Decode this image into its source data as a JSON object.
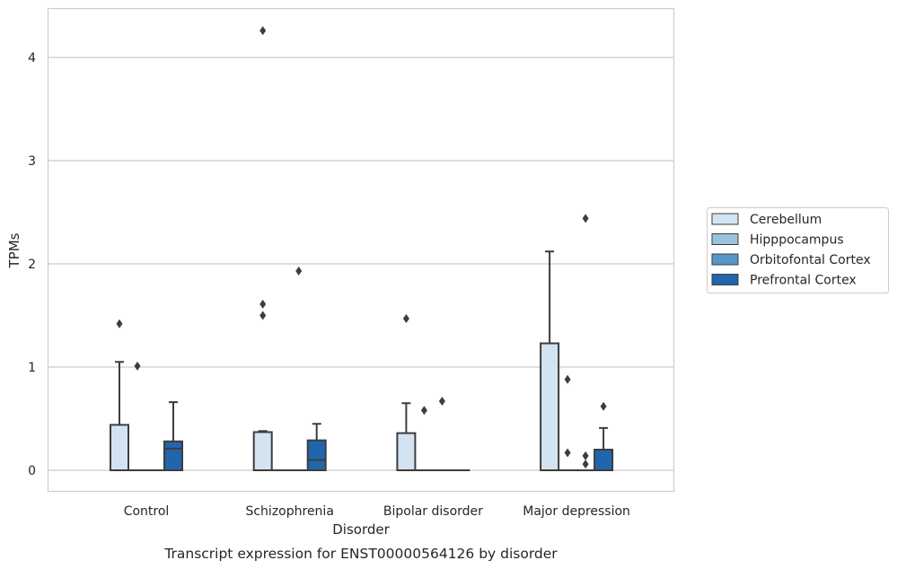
{
  "chart_data": {
    "type": "box",
    "xlabel": "Disorder",
    "ylabel": "TPMs",
    "caption": "Transcript expression for ENST00000564126 by disorder",
    "categories": [
      "Control",
      "Schizophrenia",
      "Bipolar disorder",
      "Major depression"
    ],
    "ylim": [
      -0.2,
      4.5
    ],
    "yticks": [
      0,
      1,
      2,
      3,
      4
    ],
    "grid": "horizontal",
    "legend_position": "right",
    "series": [
      {
        "name": "Cerebellum",
        "color": "#d3e3f2",
        "boxes": [
          {
            "q1": 0,
            "median": 0,
            "q3": 0.44,
            "whisker_low": 0,
            "whisker_high": 1.05,
            "fliers": [
              1.42
            ]
          },
          {
            "q1": 0,
            "median": 0,
            "q3": 0.37,
            "whisker_low": 0,
            "whisker_high": 0.38,
            "fliers": [
              1.5,
              1.61,
              4.26
            ]
          },
          {
            "q1": 0,
            "median": 0,
            "q3": 0.36,
            "whisker_low": 0,
            "whisker_high": 0.65,
            "fliers": [
              1.47
            ]
          },
          {
            "q1": 0,
            "median": 0,
            "q3": 1.23,
            "whisker_low": 0,
            "whisker_high": 2.12,
            "fliers": []
          }
        ]
      },
      {
        "name": "Hipppocampus",
        "color": "#99c3dd",
        "boxes": [
          {
            "q1": 0,
            "median": 0,
            "q3": 0,
            "whisker_low": 0,
            "whisker_high": 0,
            "fliers": [
              1.01
            ]
          },
          {
            "q1": 0,
            "median": 0,
            "q3": 0,
            "whisker_low": 0,
            "whisker_high": 0,
            "fliers": []
          },
          {
            "q1": 0,
            "median": 0,
            "q3": 0,
            "whisker_low": 0,
            "whisker_high": 0,
            "fliers": [
              0.58
            ]
          },
          {
            "q1": 0,
            "median": 0,
            "q3": 0,
            "whisker_low": 0,
            "whisker_high": 0,
            "fliers": [
              0.17,
              0.88
            ]
          }
        ]
      },
      {
        "name": "Orbitofontal Cortex",
        "color": "#5596c8",
        "boxes": [
          {
            "q1": 0,
            "median": 0,
            "q3": 0,
            "whisker_low": 0,
            "whisker_high": 0,
            "fliers": []
          },
          {
            "q1": 0,
            "median": 0,
            "q3": 0,
            "whisker_low": 0,
            "whisker_high": 0,
            "fliers": [
              1.93
            ]
          },
          {
            "q1": 0,
            "median": 0,
            "q3": 0,
            "whisker_low": 0,
            "whisker_high": 0,
            "fliers": [
              0.67
            ]
          },
          {
            "q1": 0,
            "median": 0,
            "q3": 0,
            "whisker_low": 0,
            "whisker_high": 0,
            "fliers": [
              0.06,
              0.14,
              2.44
            ]
          }
        ]
      },
      {
        "name": "Prefrontal Cortex",
        "color": "#2166ac",
        "boxes": [
          {
            "q1": 0,
            "median": 0.21,
            "q3": 0.28,
            "whisker_low": 0,
            "whisker_high": 0.66,
            "fliers": []
          },
          {
            "q1": 0,
            "median": 0.1,
            "q3": 0.29,
            "whisker_low": 0,
            "whisker_high": 0.45,
            "fliers": []
          },
          {
            "q1": 0,
            "median": 0,
            "q3": 0,
            "whisker_low": 0,
            "whisker_high": 0,
            "fliers": []
          },
          {
            "q1": 0,
            "median": 0,
            "q3": 0.2,
            "whisker_low": 0,
            "whisker_high": 0.41,
            "fliers": [
              0.62
            ]
          }
        ]
      }
    ]
  }
}
